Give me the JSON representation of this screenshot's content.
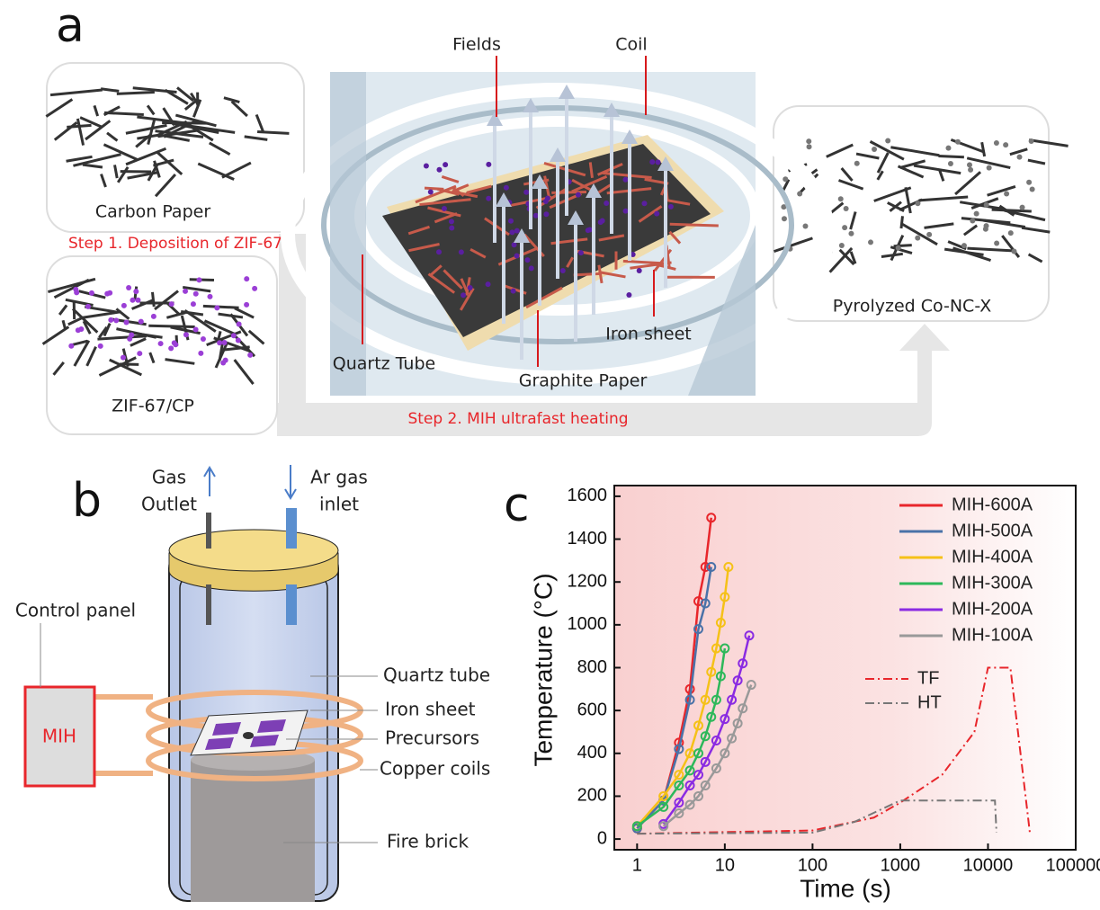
{
  "panel_a": {
    "label": "a",
    "fields": "Fields",
    "coil": "Coil",
    "carbon_paper": "Carbon Paper",
    "step1": "Step 1. Deposition of ZIF-67",
    "zif": "ZIF-67/CP",
    "quartz_tube": "Quartz Tube",
    "graphite_paper": "Graphite Paper",
    "iron_sheet": "Iron sheet",
    "pyrolyzed": "Pyrolyzed Co-NC-X",
    "step2": "Step 2. MIH ultrafast heating"
  },
  "panel_b": {
    "label": "b",
    "gas_outlet": [
      "Gas",
      "Outlet"
    ],
    "ar_inlet": [
      "Ar gas",
      "inlet"
    ],
    "control_panel": "Control panel",
    "mih": "MIH",
    "quartz_tube": "Quartz tube",
    "iron_sheet": "Iron sheet",
    "precursors": "Precursors",
    "copper_coils": "Copper coils",
    "fire_brick": "Fire brick"
  },
  "chart_data": {
    "type": "line",
    "panel_label": "c",
    "x_label": "Time (s)",
    "y_label": "Temperature (°C)",
    "x_scale": "log",
    "xlim": [
      0.55,
      100000
    ],
    "xticks": [
      1,
      10,
      100,
      1000,
      10000,
      100000
    ],
    "ylim": [
      -50,
      1650
    ],
    "yticks": [
      0,
      200,
      400,
      600,
      800,
      1000,
      1200,
      1400,
      1600
    ],
    "series": [
      {
        "name": "MIH-600A",
        "color": "#e8262b",
        "style": "solid-marker",
        "x": [
          1,
          2,
          3,
          4,
          5,
          6,
          7
        ],
        "values": [
          50,
          180,
          450,
          700,
          1110,
          1270,
          1500
        ]
      },
      {
        "name": "MIH-500A",
        "color": "#4a72a8",
        "style": "solid-marker",
        "x": [
          1,
          2,
          3,
          4,
          5,
          6,
          7
        ],
        "values": [
          50,
          180,
          420,
          650,
          980,
          1100,
          1270
        ]
      },
      {
        "name": "MIH-400A",
        "color": "#f5c118",
        "style": "solid-marker",
        "x": [
          1,
          2,
          3,
          4,
          5,
          6,
          7,
          8,
          9,
          10,
          11
        ],
        "values": [
          60,
          200,
          300,
          400,
          530,
          650,
          780,
          890,
          1010,
          1130,
          1270
        ]
      },
      {
        "name": "MIH-300A",
        "color": "#2db85a",
        "style": "solid-marker",
        "x": [
          1,
          2,
          3,
          4,
          5,
          6,
          7,
          8,
          9,
          10
        ],
        "values": [
          60,
          150,
          250,
          320,
          400,
          480,
          570,
          650,
          760,
          890
        ]
      },
      {
        "name": "MIH-200A",
        "color": "#8a2be2",
        "style": "solid-marker",
        "x": [
          2,
          3,
          4,
          5,
          6,
          8,
          10,
          12,
          14,
          16,
          19
        ],
        "values": [
          70,
          170,
          250,
          300,
          360,
          460,
          560,
          650,
          740,
          820,
          950
        ]
      },
      {
        "name": "MIH-100A",
        "color": "#999999",
        "style": "solid-marker",
        "x": [
          2,
          3,
          4,
          5,
          6,
          8,
          10,
          12,
          14,
          16,
          20
        ],
        "values": [
          60,
          120,
          160,
          200,
          250,
          330,
          400,
          470,
          540,
          610,
          720
        ]
      },
      {
        "name": "TF",
        "color": "#e8262b",
        "style": "dash-dot",
        "x": [
          1,
          100,
          500,
          1000,
          3000,
          7000,
          10000,
          18000,
          30000
        ],
        "values": [
          25,
          40,
          100,
          170,
          300,
          500,
          800,
          800,
          30
        ]
      },
      {
        "name": "HT",
        "color": "#777777",
        "style": "dash-dot",
        "x": [
          1,
          100,
          300,
          1000,
          12000,
          12500
        ],
        "values": [
          25,
          30,
          80,
          180,
          180,
          30
        ]
      }
    ]
  }
}
